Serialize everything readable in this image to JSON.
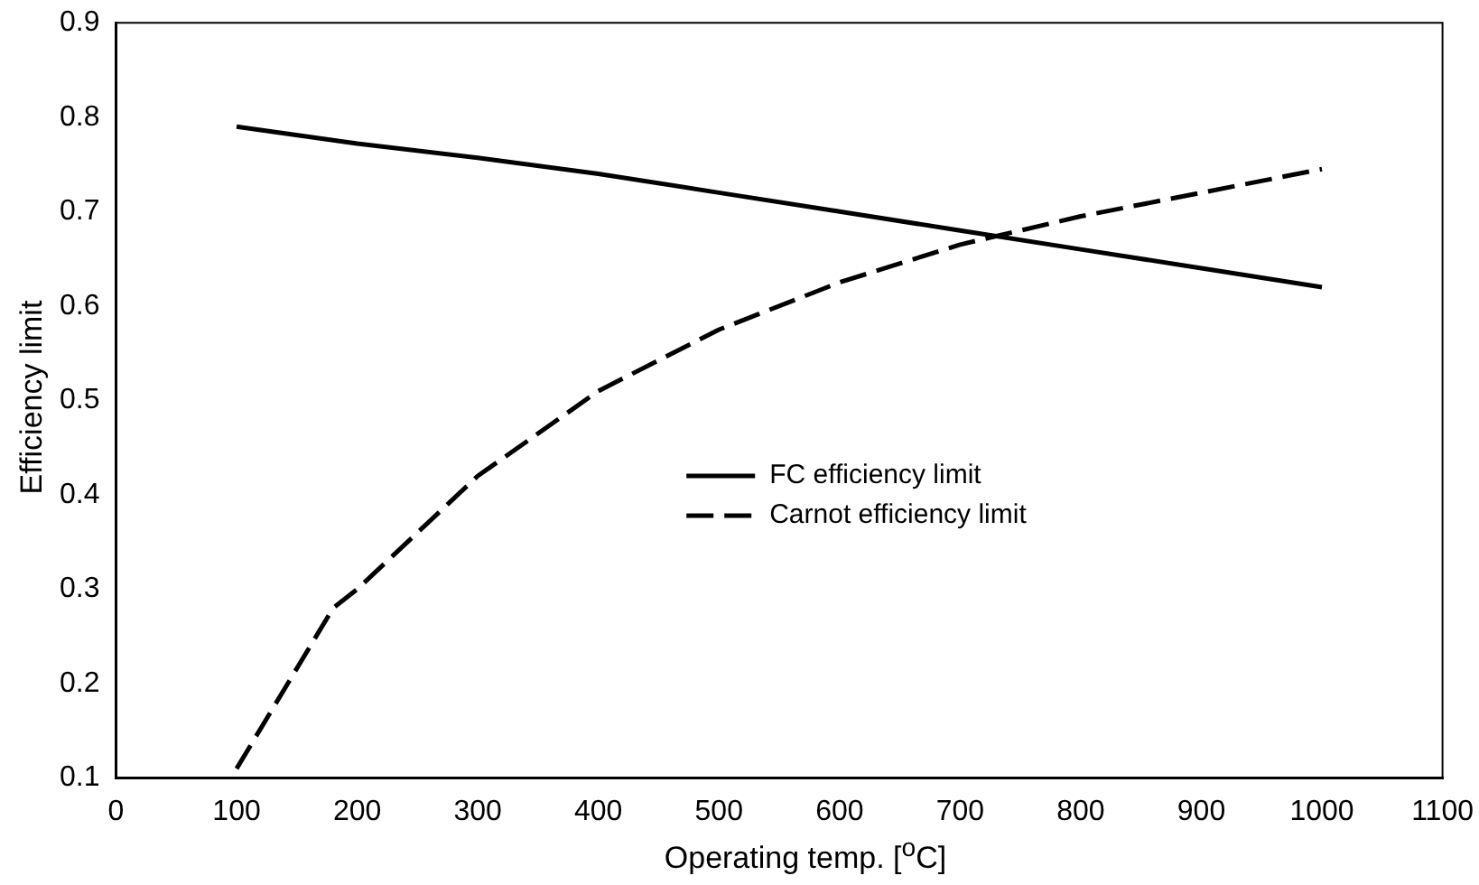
{
  "chart_data": {
    "type": "line",
    "xlabel": "Operating temp. [$^{o}$C]",
    "ylabel": "Efficiency limit",
    "xlim": [
      0,
      1100
    ],
    "xticks": [
      0,
      100,
      200,
      300,
      400,
      500,
      600,
      700,
      800,
      900,
      1000,
      1100
    ],
    "ylim": [
      0.1,
      0.9
    ],
    "yticks": [
      0.1,
      0.2,
      0.3,
      0.4,
      0.5,
      0.6,
      0.7,
      0.8,
      0.9
    ],
    "grid": false,
    "legend": "center",
    "marker": "none",
    "series": [
      {
        "name": "FC efficiency limit",
        "color": "#000000",
        "line_style": "solid",
        "x": [
          100,
          200,
          300,
          400,
          500,
          600,
          700,
          800,
          900,
          1000
        ],
        "values": [
          0.79,
          0.772,
          0.757,
          0.74,
          0.72,
          0.7,
          0.68,
          0.66,
          0.64,
          0.62
        ]
      },
      {
        "name": "Carnot efficiency limit",
        "color": "#000000",
        "line_style": "dashed",
        "x": [
          100,
          180,
          200,
          300,
          400,
          500,
          600,
          700,
          800,
          900,
          1000
        ],
        "values": [
          0.11,
          0.28,
          0.3,
          0.42,
          0.51,
          0.575,
          0.625,
          0.665,
          0.695,
          0.72,
          0.745
        ]
      }
    ]
  }
}
